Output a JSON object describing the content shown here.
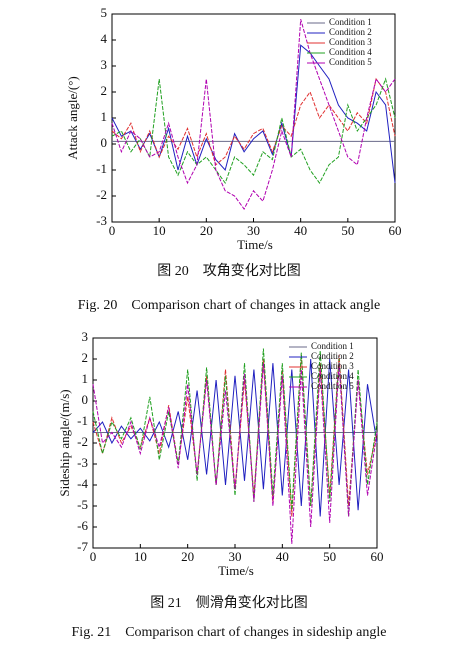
{
  "chart_data": [
    {
      "type": "line",
      "ylabel": "Attack angle/(°)",
      "xlabel": "Time/s",
      "caption_cn": "图 20　攻角变化对比图",
      "caption_en": "Fig. 20　Comparison chart of changes in attack angle",
      "x": [
        0,
        2,
        4,
        6,
        8,
        10,
        12,
        14,
        16,
        18,
        20,
        22,
        24,
        26,
        28,
        30,
        32,
        34,
        36,
        38,
        40,
        42,
        44,
        46,
        48,
        50,
        52,
        54,
        56,
        58,
        60
      ],
      "xlim": [
        0,
        60
      ],
      "xticks": [
        0,
        10,
        20,
        30,
        40,
        50,
        60
      ],
      "ylim": [
        -3,
        5
      ],
      "yticks": [
        -3,
        -2,
        -1,
        0,
        1,
        2,
        3,
        4,
        5
      ],
      "legend": "upper right",
      "series": [
        {
          "name": "Condition 1",
          "color": "#6a6a8a",
          "values": [
            0.1,
            0.1,
            0.1,
            0.1,
            0.1,
            0.1,
            0.1,
            0.1,
            0.1,
            0.1,
            0.1,
            0.1,
            0.1,
            0.1,
            0.1,
            0.1,
            0.1,
            0.1,
            0.1,
            0.1,
            0.1,
            0.1,
            0.1,
            0.1,
            0.1,
            0.1,
            0.1,
            0.1,
            0.1,
            0.1,
            0.1
          ]
        },
        {
          "name": "Condition 2",
          "color": "#2020c0",
          "values": [
            1,
            0.3,
            0.5,
            -0.2,
            0.4,
            -0.5,
            0.6,
            -1,
            0.3,
            -0.8,
            0.2,
            -0.6,
            -1,
            0.4,
            -0.3,
            0.2,
            0.5,
            -0.4,
            0.8,
            -0.5,
            3.8,
            3.5,
            3,
            2.5,
            1.5,
            1,
            0.8,
            0.5,
            2,
            1.5,
            -1.5
          ]
        },
        {
          "name": "Condition 3",
          "color": "#e03030",
          "values": [
            0.5,
            0.2,
            0.8,
            -0.3,
            0.5,
            -0.5,
            0.3,
            -0.2,
            0.6,
            -0.5,
            0.4,
            -0.8,
            -0.5,
            0.3,
            -0.2,
            0.4,
            0.6,
            -0.3,
            0.7,
            0.3,
            1.5,
            2,
            1,
            1.5,
            1,
            0.5,
            1.2,
            0.8,
            2.5,
            2,
            0.3
          ]
        },
        {
          "name": "Condition 4",
          "color": "#20a020",
          "values": [
            0.3,
            0.5,
            -0.3,
            0.2,
            -0.5,
            2.5,
            -0.5,
            -1.2,
            -0.3,
            -0.8,
            -0.5,
            -1,
            -1.5,
            -0.5,
            -0.8,
            -1.2,
            -0.3,
            -0.6,
            1,
            -0.5,
            -0.2,
            -1,
            -1.5,
            -0.8,
            -0.5,
            1.5,
            0.5,
            1,
            1.5,
            2.5,
            1
          ]
        },
        {
          "name": "Condition 5",
          "color": "#b000b0",
          "values": [
            0.8,
            -0.3,
            0.5,
            0.2,
            -0.5,
            -0.3,
            0.8,
            -0.5,
            -1.5,
            -0.8,
            2.5,
            -1,
            -1.8,
            -2,
            -2.5,
            -1.8,
            -2.2,
            -1,
            0.5,
            -0.5,
            4.8,
            3.5,
            2.5,
            1.5,
            0.5,
            -0.5,
            -0.8,
            1,
            2.5,
            2,
            2.5
          ]
        }
      ]
    },
    {
      "type": "line",
      "ylabel": "Sideship angle/(m/s)",
      "xlabel": "Time/s",
      "caption_cn": "图 21　侧滑角变化对比图",
      "caption_en": "Fig. 21　Comparison chart of changes in sideship angle",
      "x": [
        0,
        2,
        4,
        6,
        8,
        10,
        12,
        14,
        16,
        18,
        20,
        22,
        24,
        26,
        28,
        30,
        32,
        34,
        36,
        38,
        40,
        42,
        44,
        46,
        48,
        50,
        52,
        54,
        56,
        58,
        60
      ],
      "xlim": [
        0,
        60
      ],
      "xticks": [
        0,
        10,
        20,
        30,
        40,
        50,
        60
      ],
      "ylim": [
        -7,
        3
      ],
      "yticks": [
        -7,
        -6,
        -5,
        -4,
        -3,
        -2,
        -1,
        0,
        1,
        2,
        3
      ],
      "legend": "upper right",
      "series": [
        {
          "name": "Condition 1",
          "color": "#6a6a8a",
          "values": [
            -1.5,
            -1.5,
            -1.5,
            -1.5,
            -1.5,
            -1.5,
            -1.5,
            -1.5,
            -1.5,
            -1.5,
            -1.5,
            -1.5,
            -1.5,
            -1.5,
            -1.5,
            -1.5,
            -1.5,
            -1.5,
            -1.5,
            -1.5,
            -1.5,
            -1.5,
            -1.5,
            -1.5,
            -1.5,
            -1.5,
            -1.5,
            -1.5,
            -1.5,
            -1.5,
            -1.5
          ]
        },
        {
          "name": "Condition 2",
          "color": "#2020c0",
          "values": [
            -1.5,
            -1,
            -2,
            -1.2,
            -1.8,
            -1.3,
            -1.9,
            -1,
            -2.2,
            -0.5,
            -2.8,
            0.5,
            -3.5,
            1,
            -4,
            1.2,
            -3.8,
            1.5,
            -4.2,
            1.8,
            -4.5,
            1.5,
            -5,
            2,
            -5.5,
            2,
            -4,
            1.5,
            -5.2,
            0.8,
            -2
          ]
        },
        {
          "name": "Condition 3",
          "color": "#e03030",
          "values": [
            -1,
            -2.5,
            -0.8,
            -2,
            -1.2,
            -2.2,
            -0.8,
            -2.5,
            -0.2,
            -3,
            0.2,
            -3.5,
            1.2,
            -4,
            1.5,
            -4.2,
            1,
            -4.5,
            2,
            -4.8,
            1.5,
            -5.5,
            2.2,
            -5,
            1.8,
            -4.5,
            2.2,
            -5,
            1,
            -3.5,
            -1.5
          ]
        },
        {
          "name": "Condition 4",
          "color": "#20a020",
          "values": [
            -0.5,
            -2.5,
            -1,
            -1.8,
            -0.8,
            -2.3,
            0.2,
            -2.8,
            -0.5,
            -3,
            1.5,
            -3.8,
            1.6,
            -4,
            1.2,
            -4.5,
            1.8,
            -4.8,
            2.5,
            -4.5,
            1.8,
            -5.2,
            2.3,
            -5,
            2.4,
            -4.8,
            2,
            -5.5,
            1.5,
            -4,
            -1
          ]
        },
        {
          "name": "Condition 5",
          "color": "#b000b0",
          "values": [
            0.8,
            -2,
            -1.5,
            -2.2,
            -1,
            -2.5,
            -0.8,
            -2.2,
            -0.3,
            -3.2,
            0.8,
            -3.5,
            1,
            -4,
            0.5,
            -4.2,
            1.3,
            -4.8,
            1.8,
            -5,
            1.2,
            -6.8,
            1.5,
            -6,
            1.5,
            -5.8,
            1.8,
            -5.5,
            1,
            -4.5,
            -1.5
          ]
        }
      ]
    }
  ]
}
